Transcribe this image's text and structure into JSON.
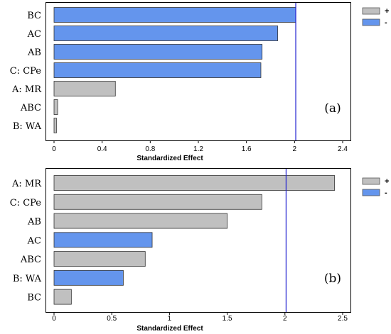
{
  "chart_data": [
    {
      "type": "bar",
      "orientation": "horizontal",
      "panel_label": "(a)",
      "xlabel": "Standardized Effect",
      "xlim": [
        0,
        2.4
      ],
      "xticks": [
        "0",
        "0.4",
        "0.8",
        "1.2",
        "1.6",
        "2",
        "2.4"
      ],
      "reference_line": 2.01,
      "categories": [
        "BC",
        "AC",
        "AB",
        "C: CPe",
        "A: MR",
        "ABC",
        "B: WA"
      ],
      "values": [
        2.01,
        1.86,
        1.73,
        1.72,
        0.51,
        0.03,
        0.02
      ],
      "signs": [
        "-",
        "-",
        "-",
        "-",
        "+",
        "+",
        "+"
      ],
      "legend": [
        {
          "label": "+",
          "color": "#c0c0c0"
        },
        {
          "label": "-",
          "color": "#6495ed"
        }
      ],
      "legend_position": "top-right"
    },
    {
      "type": "bar",
      "orientation": "horizontal",
      "panel_label": "(b)",
      "xlabel": "Standardized Effect",
      "xlim": [
        0,
        2.5
      ],
      "xticks": [
        "0",
        "0.5",
        "1",
        "1.5",
        "2",
        "2.5"
      ],
      "reference_line": 2.01,
      "categories": [
        "A: MR",
        "C: CPe",
        "AB",
        "AC",
        "ABC",
        "B: WA",
        "BC"
      ],
      "values": [
        2.43,
        1.8,
        1.5,
        0.85,
        0.79,
        0.6,
        0.15
      ],
      "signs": [
        "+",
        "+",
        "+",
        "-",
        "+",
        "-",
        "+"
      ],
      "legend": [
        {
          "label": "+",
          "color": "#c0c0c0"
        },
        {
          "label": "-",
          "color": "#6495ed"
        }
      ],
      "legend_position": "top-right"
    }
  ]
}
